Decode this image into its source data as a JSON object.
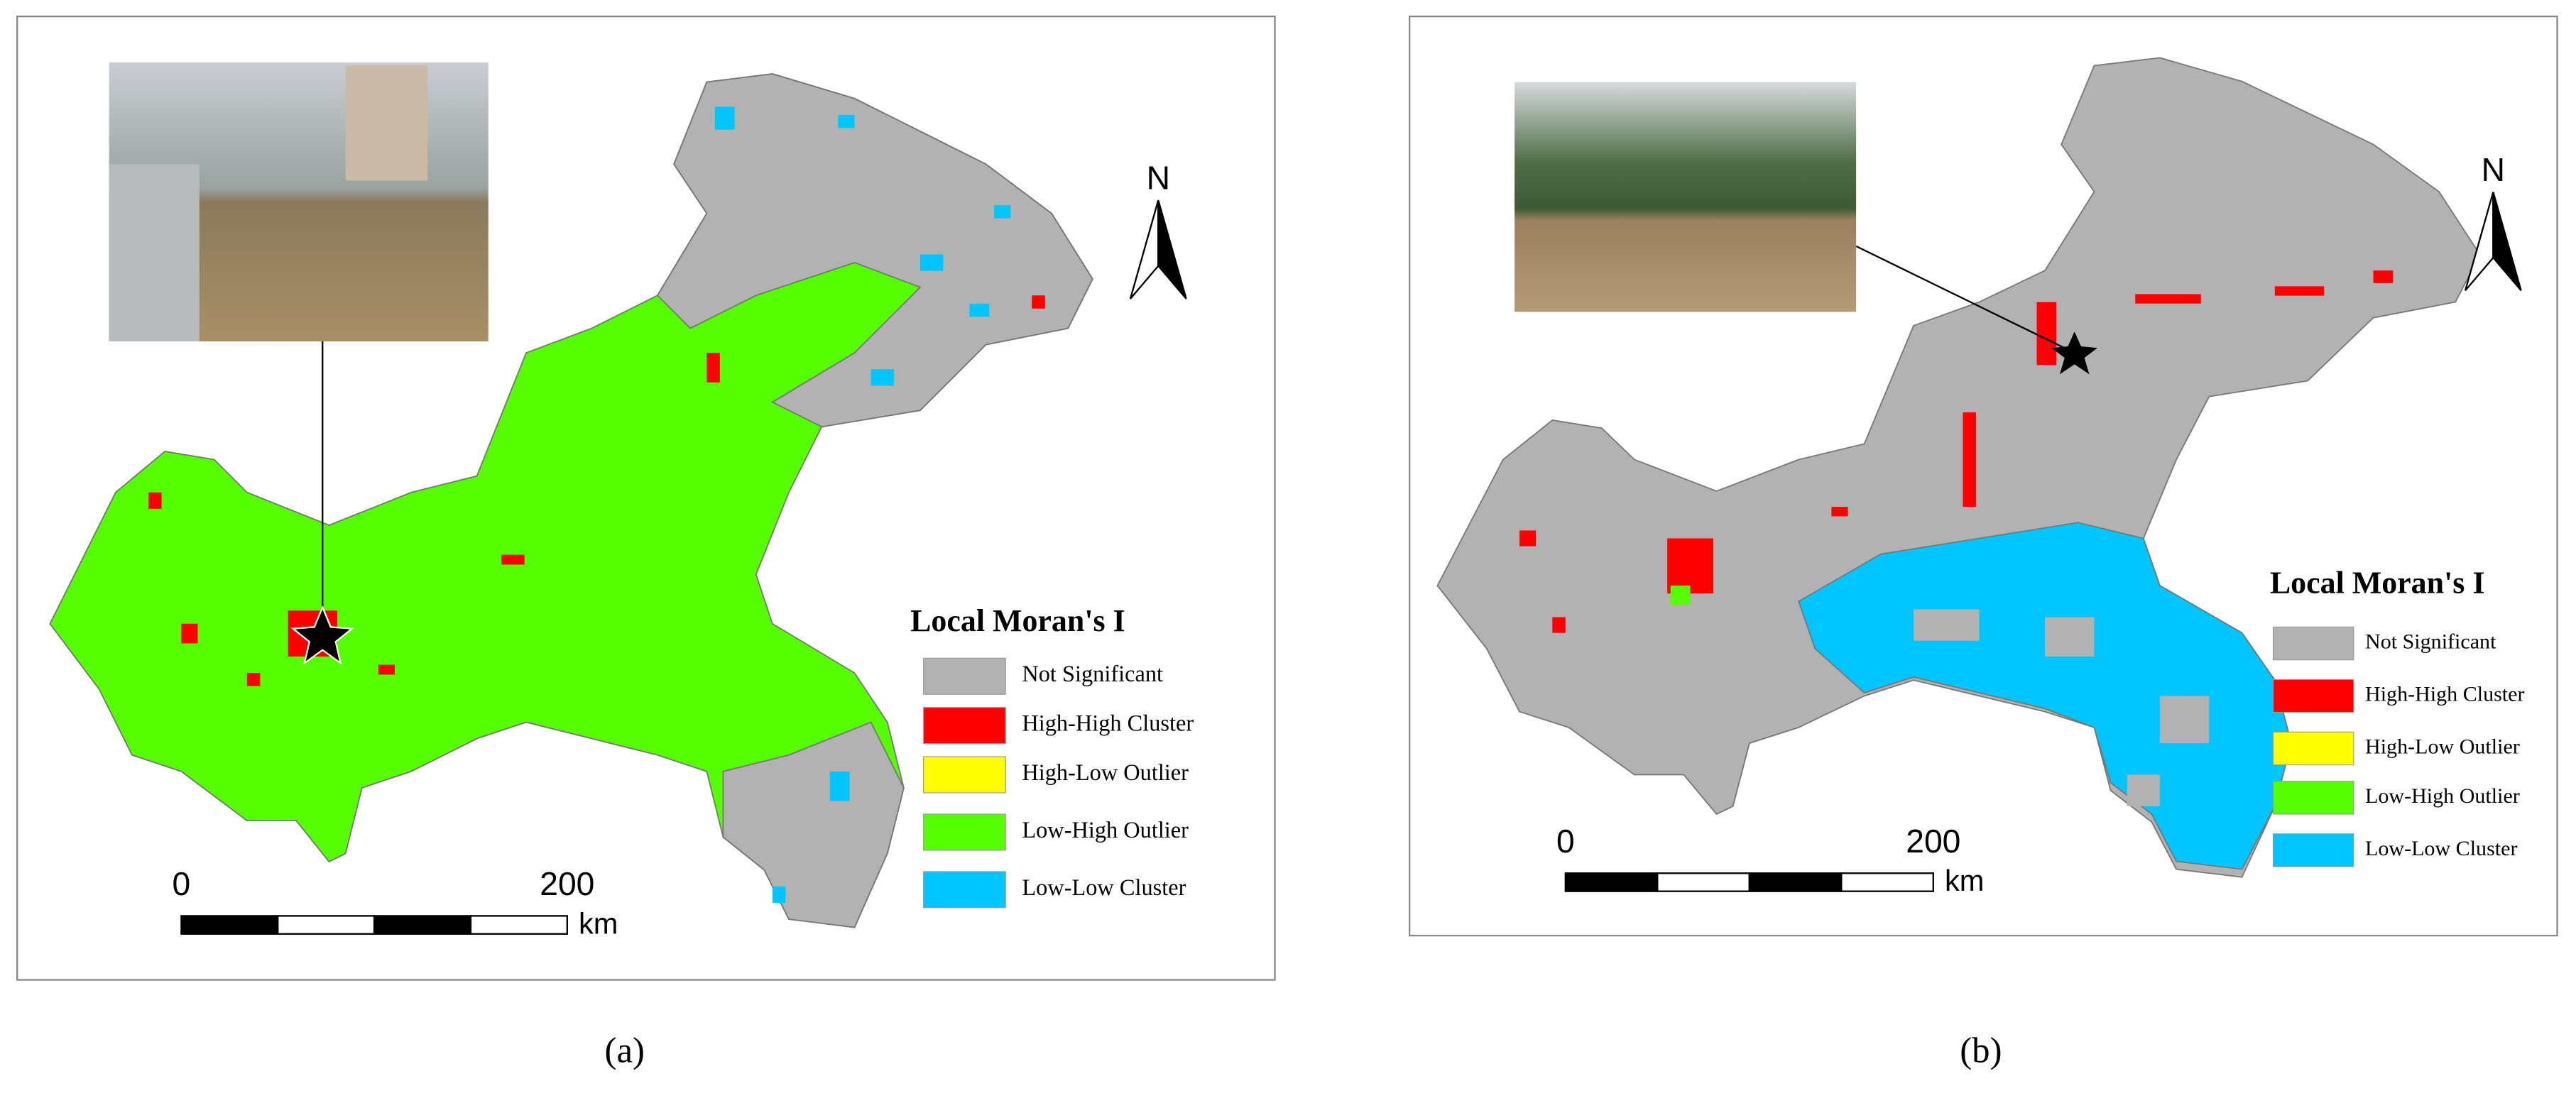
{
  "panels": [
    {
      "caption": "(a)",
      "north": "N",
      "legend": {
        "title": "Local Moran's I",
        "items": [
          {
            "label": "Not Significant",
            "color": "#b2b2b2"
          },
          {
            "label": "High-High Cluster",
            "color": "#ff0000"
          },
          {
            "label": "High-Low Outlier",
            "color": "#ffff00"
          },
          {
            "label": "Low-High Outlier",
            "color": "#55ff00"
          },
          {
            "label": "Low-Low Cluster",
            "color": "#00c5ff"
          }
        ]
      },
      "scale_bar": {
        "ticks": [
          "0",
          "200"
        ],
        "unit": "km"
      }
    },
    {
      "caption": "(b)",
      "north": "N",
      "legend": {
        "title": "Local Moran's I",
        "items": [
          {
            "label": "Not Significant",
            "color": "#b2b2b2"
          },
          {
            "label": "High-High Cluster",
            "color": "#ff0000"
          },
          {
            "label": "High-Low Outlier",
            "color": "#ffff00"
          },
          {
            "label": "Low-High Outlier",
            "color": "#55ff00"
          },
          {
            "label": "Low-Low Cluster",
            "color": "#00c5ff"
          }
        ]
      },
      "scale_bar": {
        "ticks": [
          "0",
          "200"
        ],
        "unit": "km"
      }
    }
  ]
}
